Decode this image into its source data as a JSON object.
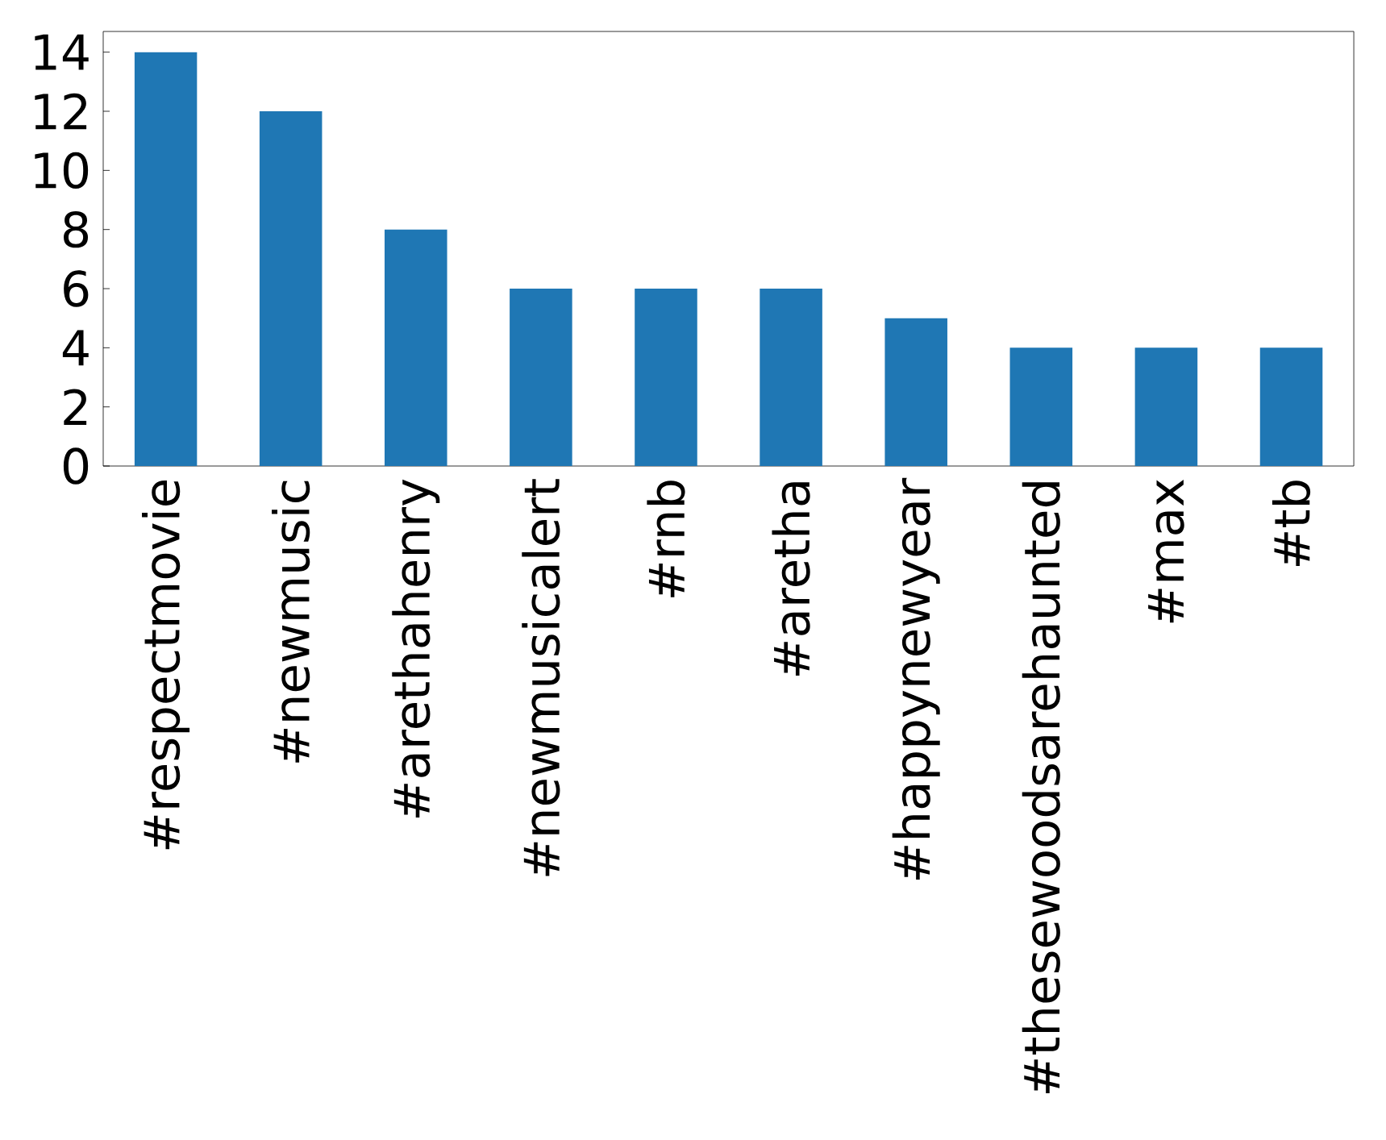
{
  "chart_data": {
    "type": "bar",
    "categories": [
      "#respectmovie",
      "#newmusic",
      "#arethahenry",
      "#newmusicalert",
      "#rnb",
      "#aretha",
      "#happynewyear",
      "#thesewoodsarehaunted",
      "#max",
      "#tb"
    ],
    "values": [
      14,
      12,
      8,
      6,
      6,
      6,
      5,
      4,
      4,
      4
    ],
    "color": "#1f77b4",
    "ylim": [
      0,
      14.7
    ],
    "yticks": [
      0,
      2,
      4,
      6,
      8,
      10,
      12,
      14
    ]
  }
}
